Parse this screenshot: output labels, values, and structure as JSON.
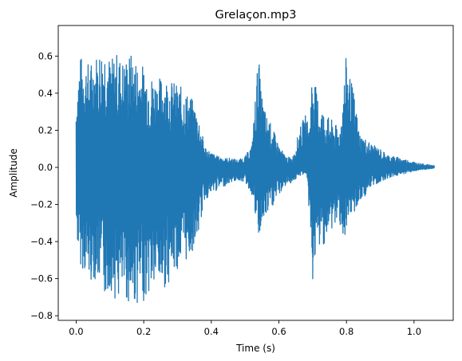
{
  "chart_data": {
    "type": "line",
    "title": "Grelaçon.mp3",
    "xlabel": "Time (s)",
    "ylabel": "Amplitude",
    "xlim": [
      -0.053,
      1.116
    ],
    "ylim": [
      -0.825,
      0.765
    ],
    "x_ticks": [
      0.0,
      0.2,
      0.4,
      0.6,
      0.8,
      1.0
    ],
    "x_tick_labels": [
      "0.0",
      "0.2",
      "0.4",
      "0.6",
      "0.8",
      "1.0"
    ],
    "y_ticks": [
      -0.8,
      -0.6,
      -0.4,
      -0.2,
      0.0,
      0.2,
      0.4,
      0.6
    ],
    "y_tick_labels": [
      "−0.8",
      "−0.6",
      "−0.4",
      "−0.2",
      "0.0",
      "0.2",
      "0.4",
      "0.6"
    ],
    "grid": false,
    "legend": "none",
    "series": [
      {
        "color": "#1f77b4",
        "x": [
          0.0,
          0.01,
          0.02,
          0.04,
          0.06,
          0.08,
          0.09,
          0.1,
          0.12,
          0.14,
          0.16,
          0.18,
          0.2,
          0.22,
          0.24,
          0.26,
          0.28,
          0.3,
          0.32,
          0.34,
          0.35,
          0.36,
          0.38,
          0.4,
          0.42,
          0.44,
          0.46,
          0.48,
          0.5,
          0.52,
          0.54,
          0.545,
          0.56,
          0.58,
          0.6,
          0.62,
          0.64,
          0.66,
          0.67,
          0.68,
          0.69,
          0.7,
          0.71,
          0.72,
          0.74,
          0.76,
          0.78,
          0.8,
          0.81,
          0.82,
          0.84,
          0.86,
          0.88,
          0.9,
          0.92,
          0.94,
          0.96,
          0.98,
          1.0,
          1.02,
          1.04,
          1.06
        ],
        "upper": [
          0.37,
          0.6,
          0.6,
          0.56,
          0.62,
          0.67,
          0.69,
          0.58,
          0.62,
          0.58,
          0.62,
          0.58,
          0.55,
          0.5,
          0.48,
          0.5,
          0.47,
          0.45,
          0.42,
          0.38,
          0.34,
          0.3,
          0.12,
          0.08,
          0.06,
          0.05,
          0.05,
          0.04,
          0.06,
          0.12,
          0.63,
          0.45,
          0.3,
          0.22,
          0.12,
          0.06,
          0.05,
          0.2,
          0.25,
          0.29,
          0.22,
          0.58,
          0.42,
          0.35,
          0.28,
          0.25,
          0.2,
          0.62,
          0.5,
          0.42,
          0.18,
          0.15,
          0.12,
          0.1,
          0.07,
          0.06,
          0.05,
          0.04,
          0.03,
          0.02,
          0.015,
          0.01
        ],
        "lower": [
          -0.35,
          -0.52,
          -0.55,
          -0.62,
          -0.6,
          -0.68,
          -0.72,
          -0.65,
          -0.73,
          -0.7,
          -0.75,
          -0.74,
          -0.72,
          -0.68,
          -0.64,
          -0.66,
          -0.6,
          -0.55,
          -0.52,
          -0.48,
          -0.42,
          -0.38,
          -0.18,
          -0.15,
          -0.12,
          -0.1,
          -0.08,
          -0.07,
          -0.08,
          -0.15,
          -0.4,
          -0.35,
          -0.28,
          -0.22,
          -0.15,
          -0.1,
          -0.08,
          -0.05,
          -0.04,
          -0.03,
          -0.25,
          -0.62,
          -0.5,
          -0.44,
          -0.4,
          -0.33,
          -0.3,
          -0.45,
          -0.3,
          -0.25,
          -0.2,
          -0.14,
          -0.1,
          -0.08,
          -0.06,
          -0.05,
          -0.04,
          -0.03,
          -0.02,
          -0.015,
          -0.01,
          -0.005
        ]
      }
    ]
  }
}
